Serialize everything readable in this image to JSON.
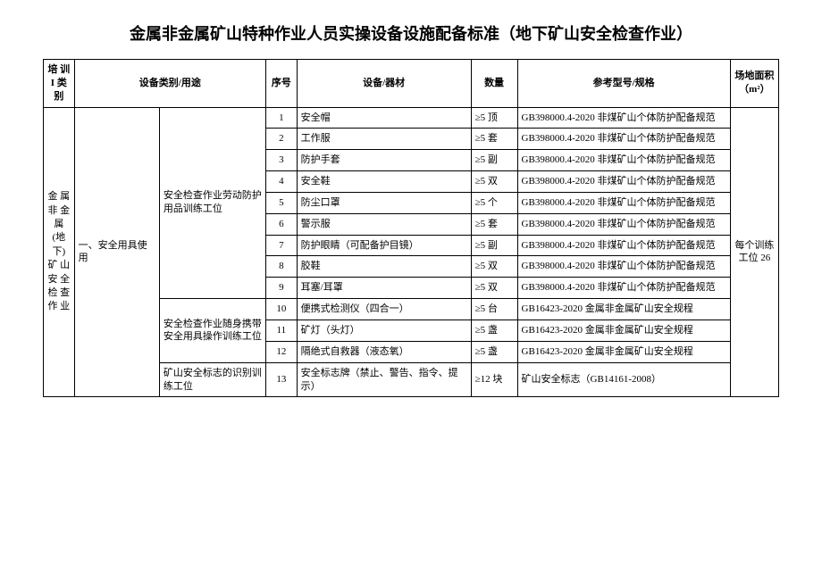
{
  "title": "金属非金属矿山特种作业人员实操设备设施配备标准（地下矿山安全检查作业）",
  "headers": {
    "category": "培 训 I 类别",
    "type_use": "设备类别/用途",
    "seq": "序号",
    "equipment": "设备/器材",
    "quantity": "数量",
    "spec": "参考型号/规格",
    "area": "场地面积（m²）"
  },
  "category_label": "金 属 非 金 属(地 下)矿 山 安 全 检 查 作 业",
  "section1": "一、安全用具使用",
  "position1": "安全检查作业劳动防护用品训练工位",
  "position2": "安全检查作业随身携带安全用具操作训练工位",
  "position3": "矿山安全标志的识别训练工位",
  "area_label": "每个训练工位 26",
  "rows": [
    {
      "seq": "1",
      "item": "安全帽",
      "qty": "≥5 顶",
      "spec": "GB398000.4-2020 非煤矿山个体防护配备规范"
    },
    {
      "seq": "2",
      "item": "工作服",
      "qty": "≥5 套",
      "spec": "GB398000.4-2020 非煤矿山个体防护配备规范"
    },
    {
      "seq": "3",
      "item": "防护手套",
      "qty": "≥5 副",
      "spec": "GB398000.4-2020 非煤矿山个体防护配备规范"
    },
    {
      "seq": "4",
      "item": "安全鞋",
      "qty": "≥5 双",
      "spec": "GB398000.4-2020 非煤矿山个体防护配备规范"
    },
    {
      "seq": "5",
      "item": "防尘口罩",
      "qty": "≥5 个",
      "spec": "GB398000.4-2020 非煤矿山个体防护配备规范"
    },
    {
      "seq": "6",
      "item": "警示服",
      "qty": "≥5 套",
      "spec": "GB398000.4-2020 非煤矿山个体防护配备规范"
    },
    {
      "seq": "7",
      "item": "防护眼睛（可配备护目镜）",
      "qty": "≥5 副",
      "spec": "GB398000.4-2020 非煤矿山个体防护配备规范"
    },
    {
      "seq": "8",
      "item": "胶鞋",
      "qty": "≥5 双",
      "spec": "GB398000.4-2020 非煤矿山个体防护配备规范"
    },
    {
      "seq": "9",
      "item": "耳塞/耳罩",
      "qty": "≥5 双",
      "spec": "GB398000.4-2020 非煤矿山个体防护配备规范"
    },
    {
      "seq": "10",
      "item": "便携式检测仪（四合一）",
      "qty": "≥5 台",
      "spec": "GB16423-2020 金属非金属矿山安全规程"
    },
    {
      "seq": "11",
      "item": "矿灯（头灯）",
      "qty": "≥5 盏",
      "spec": "GB16423-2020 金属非金属矿山安全规程"
    },
    {
      "seq": "12",
      "item": "隔绝式自救器（液态氧）",
      "qty": "≥5 盏",
      "spec": "GB16423-2020 金属非金属矿山安全规程"
    },
    {
      "seq": "13",
      "item": "安全标志牌（禁止、警告、指令、提示）",
      "qty": "≥12 块",
      "spec": "矿山安全标志（GB14161-2008）"
    }
  ]
}
